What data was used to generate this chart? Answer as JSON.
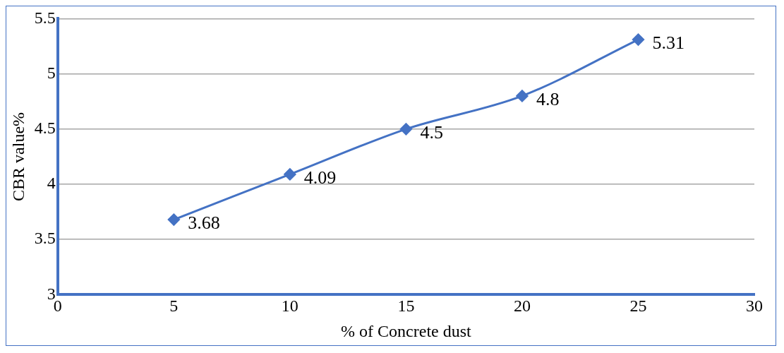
{
  "chart_data": {
    "type": "line",
    "xlabel": "% of Concrete dust",
    "ylabel": "CBR value%",
    "x": [
      5,
      10,
      15,
      20,
      25
    ],
    "series": [
      {
        "color": "#4472c4",
        "values": [
          3.68,
          4.09,
          4.5,
          4.8,
          5.31
        ]
      }
    ],
    "xlim": [
      0,
      30
    ],
    "xticks": [
      0,
      5,
      10,
      15,
      20,
      25,
      30
    ],
    "ylim": [
      3,
      5.5
    ],
    "yticks": [
      3,
      3.5,
      4,
      4.5,
      5,
      5.5
    ],
    "grid": "y",
    "legend": false,
    "marker": "diamond",
    "line_style": "solid",
    "data_labels": true
  }
}
